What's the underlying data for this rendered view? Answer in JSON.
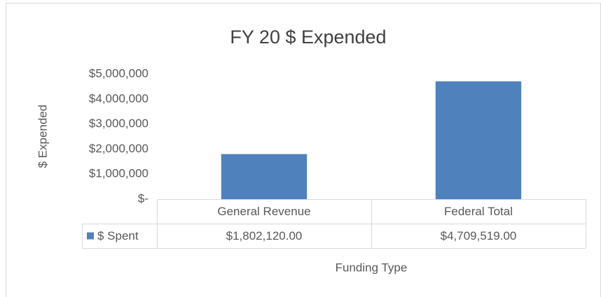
{
  "chart_data": {
    "type": "bar",
    "title": "FY 20 $ Expended",
    "x_label": "Funding Type",
    "y_label": "$ Expended",
    "categories": [
      "General Revenue",
      "Federal Total"
    ],
    "series": [
      {
        "name": "$ Spent",
        "color": "#4f81bd",
        "values": [
          1802120,
          4709519
        ],
        "value_labels": [
          "$1,802,120.00",
          "$4,709,519.00"
        ]
      }
    ],
    "ylim": [
      0,
      5000000
    ],
    "yticks": [
      {
        "value": 0,
        "label": "$-"
      },
      {
        "value": 1000000,
        "label": "$1,000,000"
      },
      {
        "value": 2000000,
        "label": "$2,000,000"
      },
      {
        "value": 3000000,
        "label": "$3,000,000"
      },
      {
        "value": 4000000,
        "label": "$4,000,000"
      },
      {
        "value": 5000000,
        "label": "$5,000,000"
      }
    ],
    "grid": false
  }
}
